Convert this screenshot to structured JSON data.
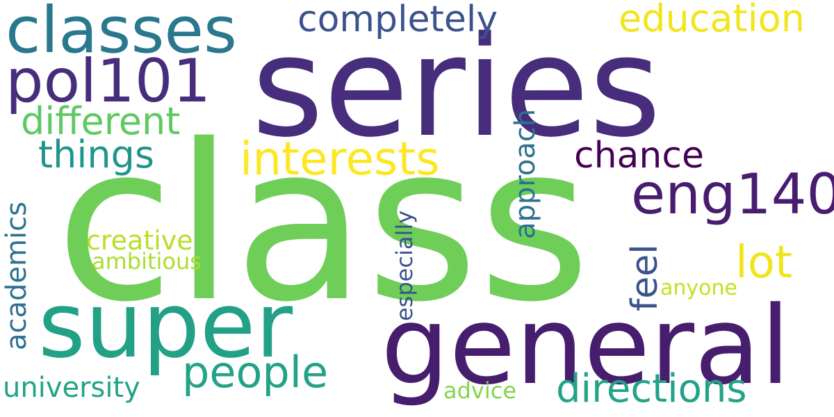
{
  "words": {
    "class": "class",
    "series": "series",
    "general": "general",
    "super": "super",
    "classes": "classes",
    "pol101": "pol101",
    "interests": "interests",
    "eng140": "eng140",
    "directions": "directions",
    "people": "people",
    "completely": "completely",
    "education": "education",
    "different": "different",
    "things": "things",
    "chance": "chance",
    "lot": "lot",
    "feel": "feel",
    "approach": "approach",
    "academics": "academics",
    "especially": "especially",
    "university": "university",
    "creative": "creative",
    "ambitious": "ambitious",
    "anyone": "anyone",
    "advice": "advice"
  },
  "colors": {
    "dark_purple": "#440154",
    "indigo": "#472d7b",
    "navy_blue": "#3b528b",
    "steel_blue": "#2c728e",
    "teal": "#21918c",
    "sea_green": "#28ae80",
    "green": "#5ec962",
    "light_green": "#6ece58",
    "lime": "#addc30",
    "yellow": "#fde725"
  }
}
